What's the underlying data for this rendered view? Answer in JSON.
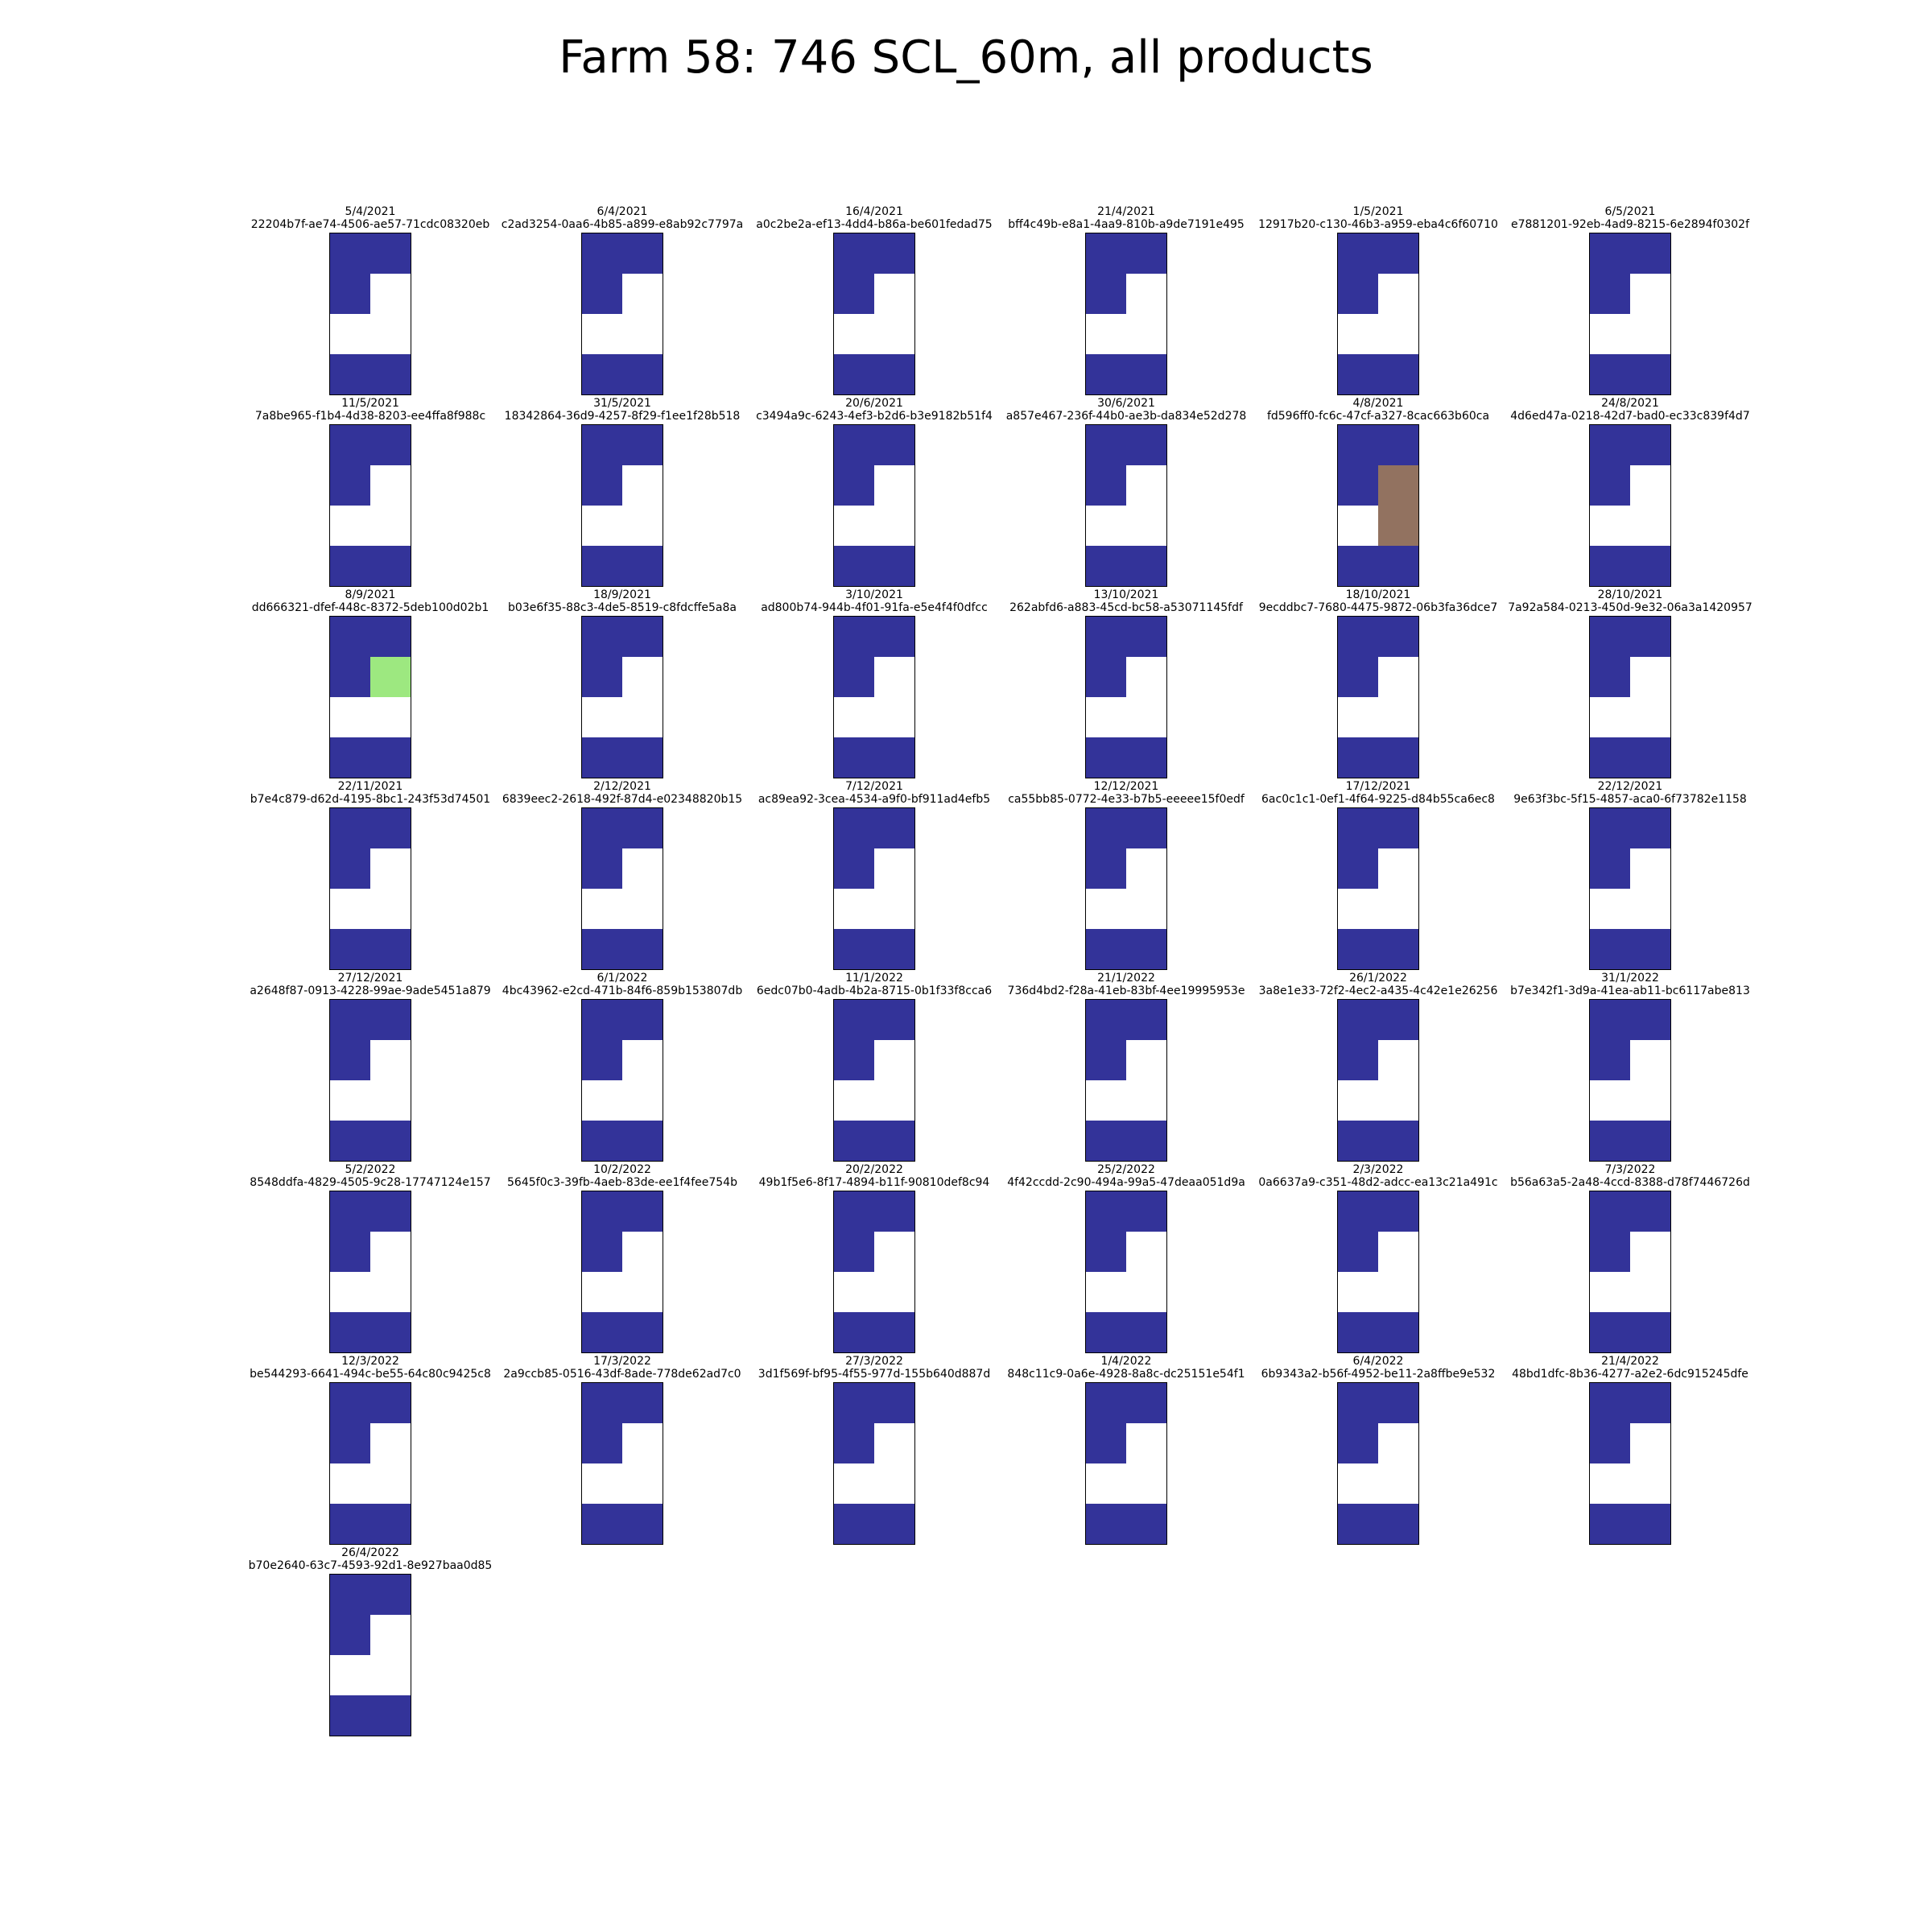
{
  "title": "Farm 58: 746 SCL_60m, all products",
  "colors": {
    "water": "#333399",
    "cloud_high": "#ffffff",
    "vegetation": "#9de880",
    "bare_soil": "#927260"
  },
  "chart_data": {
    "type": "heatmap",
    "title": "Farm 58: 746 SCL_60m, all products",
    "grid_rows": 4,
    "grid_cols": 2,
    "cell_colors": {
      "water": "#333399",
      "cloud_high": "#ffffff",
      "vegetation": "#9de880",
      "bare_soil": "#927260"
    },
    "default_cells": [
      [
        "water",
        "water"
      ],
      [
        "water",
        "cloud_high"
      ],
      [
        "cloud_high",
        "cloud_high"
      ],
      [
        "water",
        "water"
      ]
    ],
    "panels": [
      {
        "date": "5/4/2021",
        "id": "22204b7f-ae74-4506-ae57-71cdc08320eb"
      },
      {
        "date": "6/4/2021",
        "id": "c2ad3254-0aa6-4b85-a899-e8ab92c7797a"
      },
      {
        "date": "16/4/2021",
        "id": "a0c2be2a-ef13-4dd4-b86a-be601fedad75"
      },
      {
        "date": "21/4/2021",
        "id": "bff4c49b-e8a1-4aa9-810b-a9de7191e495"
      },
      {
        "date": "1/5/2021",
        "id": "12917b20-c130-46b3-a959-eba4c6f60710"
      },
      {
        "date": "6/5/2021",
        "id": "e7881201-92eb-4ad9-8215-6e2894f0302f"
      },
      {
        "date": "11/5/2021",
        "id": "7a8be965-f1b4-4d38-8203-ee4ffa8f988c"
      },
      {
        "date": "31/5/2021",
        "id": "18342864-36d9-4257-8f29-f1ee1f28b518"
      },
      {
        "date": "20/6/2021",
        "id": "c3494a9c-6243-4ef3-b2d6-b3e9182b51f4"
      },
      {
        "date": "30/6/2021",
        "id": "a857e467-236f-44b0-ae3b-da834e52d278"
      },
      {
        "date": "4/8/2021",
        "id": "fd596ff0-fc6c-47cf-a327-8cac663b60ca",
        "cells": [
          [
            "water",
            "water"
          ],
          [
            "water",
            "bare_soil"
          ],
          [
            "cloud_high",
            "bare_soil"
          ],
          [
            "water",
            "water"
          ]
        ]
      },
      {
        "date": "24/8/2021",
        "id": "4d6ed47a-0218-42d7-bad0-ec33c839f4d7"
      },
      {
        "date": "8/9/2021",
        "id": "dd666321-dfef-448c-8372-5deb100d02b1",
        "cells": [
          [
            "water",
            "water"
          ],
          [
            "water",
            "vegetation"
          ],
          [
            "cloud_high",
            "cloud_high"
          ],
          [
            "water",
            "water"
          ]
        ]
      },
      {
        "date": "18/9/2021",
        "id": "b03e6f35-88c3-4de5-8519-c8fdcffe5a8a"
      },
      {
        "date": "3/10/2021",
        "id": "ad800b74-944b-4f01-91fa-e5e4f4f0dfcc"
      },
      {
        "date": "13/10/2021",
        "id": "262abfd6-a883-45cd-bc58-a53071145fdf"
      },
      {
        "date": "18/10/2021",
        "id": "9ecddbc7-7680-4475-9872-06b3fa36dce7"
      },
      {
        "date": "28/10/2021",
        "id": "7a92a584-0213-450d-9e32-06a3a1420957"
      },
      {
        "date": "22/11/2021",
        "id": "b7e4c879-d62d-4195-8bc1-243f53d74501"
      },
      {
        "date": "2/12/2021",
        "id": "6839eec2-2618-492f-87d4-e02348820b15"
      },
      {
        "date": "7/12/2021",
        "id": "ac89ea92-3cea-4534-a9f0-bf911ad4efb5"
      },
      {
        "date": "12/12/2021",
        "id": "ca55bb85-0772-4e33-b7b5-eeeee15f0edf"
      },
      {
        "date": "17/12/2021",
        "id": "6ac0c1c1-0ef1-4f64-9225-d84b55ca6ec8"
      },
      {
        "date": "22/12/2021",
        "id": "9e63f3bc-5f15-4857-aca0-6f73782e1158"
      },
      {
        "date": "27/12/2021",
        "id": "a2648f87-0913-4228-99ae-9ade5451a879"
      },
      {
        "date": "6/1/2022",
        "id": "4bc43962-e2cd-471b-84f6-859b153807db"
      },
      {
        "date": "11/1/2022",
        "id": "6edc07b0-4adb-4b2a-8715-0b1f33f8cca6"
      },
      {
        "date": "21/1/2022",
        "id": "736d4bd2-f28a-41eb-83bf-4ee19995953e"
      },
      {
        "date": "26/1/2022",
        "id": "3a8e1e33-72f2-4ec2-a435-4c42e1e26256"
      },
      {
        "date": "31/1/2022",
        "id": "b7e342f1-3d9a-41ea-ab11-bc6117abe813"
      },
      {
        "date": "5/2/2022",
        "id": "8548ddfa-4829-4505-9c28-17747124e157"
      },
      {
        "date": "10/2/2022",
        "id": "5645f0c3-39fb-4aeb-83de-ee1f4fee754b"
      },
      {
        "date": "20/2/2022",
        "id": "49b1f5e6-8f17-4894-b11f-90810def8c94"
      },
      {
        "date": "25/2/2022",
        "id": "4f42ccdd-2c90-494a-99a5-47deaa051d9a"
      },
      {
        "date": "2/3/2022",
        "id": "0a6637a9-c351-48d2-adcc-ea13c21a491c"
      },
      {
        "date": "7/3/2022",
        "id": "b56a63a5-2a48-4ccd-8388-d78f7446726d"
      },
      {
        "date": "12/3/2022",
        "id": "be544293-6641-494c-be55-64c80c9425c8"
      },
      {
        "date": "17/3/2022",
        "id": "2a9ccb85-0516-43df-8ade-778de62ad7c0"
      },
      {
        "date": "27/3/2022",
        "id": "3d1f569f-bf95-4f55-977d-155b640d887d"
      },
      {
        "date": "1/4/2022",
        "id": "848c11c9-0a6e-4928-8a8c-dc25151e54f1"
      },
      {
        "date": "6/4/2022",
        "id": "6b9343a2-b56f-4952-be11-2a8ffbe9e532"
      },
      {
        "date": "21/4/2022",
        "id": "48bd1dfc-8b36-4277-a2e2-6dc915245dfe"
      },
      {
        "date": "26/4/2022",
        "id": "b70e2640-63c7-4593-92d1-8e927baa0d85"
      }
    ]
  }
}
